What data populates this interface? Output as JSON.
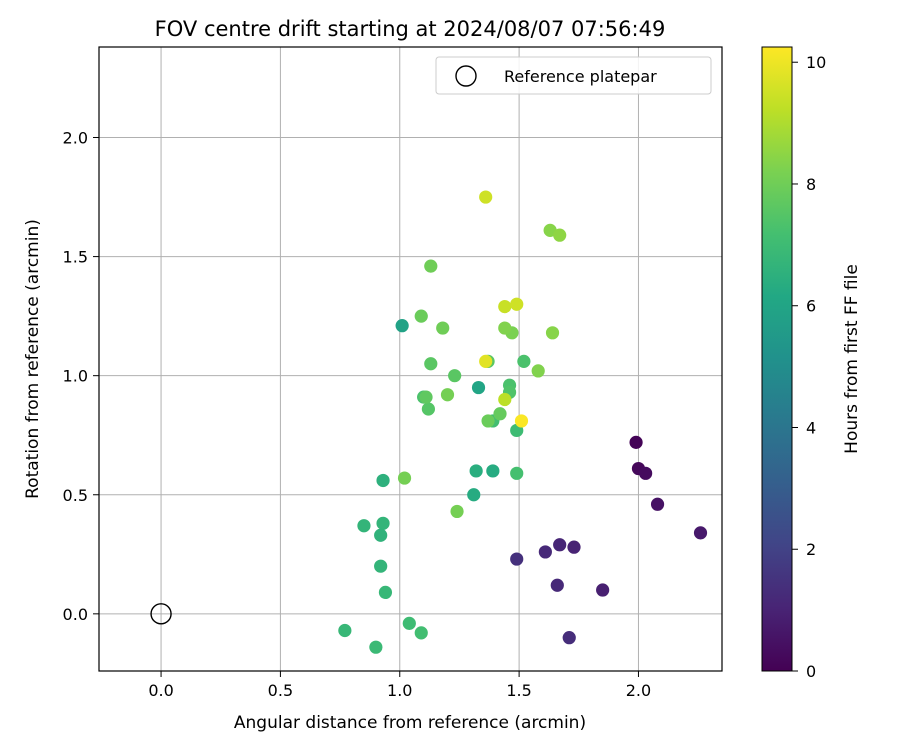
{
  "chart_data": {
    "type": "scatter",
    "title": "FOV centre drift starting at 2024/08/07 07:56:49",
    "xlabel": "Angular distance from reference (arcmin)",
    "ylabel": "Rotation from reference (arcmin)",
    "xlim": [
      -0.26,
      2.35
    ],
    "ylim": [
      -0.24,
      2.38
    ],
    "x_ticks": [
      "0.0",
      "0.5",
      "1.0",
      "1.5",
      "2.0"
    ],
    "x_tick_values": [
      0.0,
      0.5,
      1.0,
      1.5,
      2.0
    ],
    "y_ticks": [
      "0.0",
      "0.5",
      "1.0",
      "1.5",
      "2.0"
    ],
    "y_tick_values": [
      0.0,
      0.5,
      1.0,
      1.5,
      2.0
    ],
    "grid": true,
    "legend": {
      "placement": "top-right",
      "entries": [
        "Reference platepar"
      ]
    },
    "reference_point": {
      "x": 0.0,
      "y": 0.0,
      "label": "Reference platepar"
    },
    "colorbar": {
      "label": "Hours from first FF file",
      "colormap": "viridis",
      "min": 0,
      "max": 10.25,
      "ticks": [
        "0",
        "2",
        "4",
        "6",
        "8",
        "10"
      ],
      "tick_values": [
        0,
        2,
        4,
        6,
        8,
        10
      ]
    },
    "points": [
      {
        "x": 1.99,
        "y": 0.72,
        "hours": 0.1
      },
      {
        "x": 2.0,
        "y": 0.61,
        "hours": 0.2
      },
      {
        "x": 2.03,
        "y": 0.59,
        "hours": 0.3
      },
      {
        "x": 2.08,
        "y": 0.46,
        "hours": 0.5
      },
      {
        "x": 2.26,
        "y": 0.34,
        "hours": 0.7
      },
      {
        "x": 1.85,
        "y": 0.1,
        "hours": 0.9
      },
      {
        "x": 1.73,
        "y": 0.28,
        "hours": 1.0
      },
      {
        "x": 1.67,
        "y": 0.29,
        "hours": 1.1
      },
      {
        "x": 1.66,
        "y": 0.12,
        "hours": 1.2
      },
      {
        "x": 1.71,
        "y": -0.1,
        "hours": 1.3
      },
      {
        "x": 1.61,
        "y": 0.26,
        "hours": 1.2
      },
      {
        "x": 1.49,
        "y": 0.23,
        "hours": 1.4
      },
      {
        "x": 1.01,
        "y": 1.21,
        "hours": 5.9
      },
      {
        "x": 1.33,
        "y": 0.95,
        "hours": 6.0
      },
      {
        "x": 1.39,
        "y": 0.6,
        "hours": 6.3
      },
      {
        "x": 1.31,
        "y": 0.5,
        "hours": 6.3
      },
      {
        "x": 1.32,
        "y": 0.6,
        "hours": 6.4
      },
      {
        "x": 0.93,
        "y": 0.56,
        "hours": 6.5
      },
      {
        "x": 0.93,
        "y": 0.38,
        "hours": 6.7
      },
      {
        "x": 0.92,
        "y": 0.33,
        "hours": 6.6
      },
      {
        "x": 0.85,
        "y": 0.37,
        "hours": 6.7
      },
      {
        "x": 0.92,
        "y": 0.2,
        "hours": 6.7
      },
      {
        "x": 0.94,
        "y": 0.09,
        "hours": 6.8
      },
      {
        "x": 0.77,
        "y": -0.07,
        "hours": 6.8
      },
      {
        "x": 0.9,
        "y": -0.14,
        "hours": 6.9
      },
      {
        "x": 1.04,
        "y": -0.04,
        "hours": 7.0
      },
      {
        "x": 1.09,
        "y": -0.08,
        "hours": 7.1
      },
      {
        "x": 1.49,
        "y": 0.77,
        "hours": 7.0
      },
      {
        "x": 1.39,
        "y": 0.81,
        "hours": 7.1
      },
      {
        "x": 1.49,
        "y": 0.59,
        "hours": 7.2
      },
      {
        "x": 1.52,
        "y": 1.06,
        "hours": 7.3
      },
      {
        "x": 1.46,
        "y": 0.96,
        "hours": 7.3
      },
      {
        "x": 1.46,
        "y": 0.93,
        "hours": 7.4
      },
      {
        "x": 1.1,
        "y": 0.91,
        "hours": 7.3
      },
      {
        "x": 1.12,
        "y": 0.86,
        "hours": 7.5
      },
      {
        "x": 1.23,
        "y": 1.0,
        "hours": 7.6
      },
      {
        "x": 1.13,
        "y": 1.05,
        "hours": 7.6
      },
      {
        "x": 1.37,
        "y": 1.06,
        "hours": 7.6
      },
      {
        "x": 1.11,
        "y": 0.91,
        "hours": 7.7
      },
      {
        "x": 1.42,
        "y": 0.84,
        "hours": 7.8
      },
      {
        "x": 1.37,
        "y": 0.81,
        "hours": 7.9
      },
      {
        "x": 1.09,
        "y": 1.25,
        "hours": 7.9
      },
      {
        "x": 1.18,
        "y": 1.2,
        "hours": 8.0
      },
      {
        "x": 1.13,
        "y": 1.46,
        "hours": 8.0
      },
      {
        "x": 1.2,
        "y": 0.92,
        "hours": 8.1
      },
      {
        "x": 1.02,
        "y": 0.57,
        "hours": 8.1
      },
      {
        "x": 1.24,
        "y": 0.43,
        "hours": 8.1
      },
      {
        "x": 1.47,
        "y": 1.18,
        "hours": 8.2
      },
      {
        "x": 1.44,
        "y": 1.2,
        "hours": 8.3
      },
      {
        "x": 1.58,
        "y": 1.02,
        "hours": 8.3
      },
      {
        "x": 1.64,
        "y": 1.18,
        "hours": 8.4
      },
      {
        "x": 1.63,
        "y": 1.61,
        "hours": 8.4
      },
      {
        "x": 1.67,
        "y": 1.59,
        "hours": 8.5
      },
      {
        "x": 1.44,
        "y": 0.9,
        "hours": 9.2
      },
      {
        "x": 1.44,
        "y": 1.29,
        "hours": 9.4
      },
      {
        "x": 1.49,
        "y": 1.3,
        "hours": 9.5
      },
      {
        "x": 1.36,
        "y": 1.75,
        "hours": 9.5
      },
      {
        "x": 1.36,
        "y": 1.06,
        "hours": 9.8
      },
      {
        "x": 1.51,
        "y": 0.81,
        "hours": 10.2
      }
    ]
  }
}
